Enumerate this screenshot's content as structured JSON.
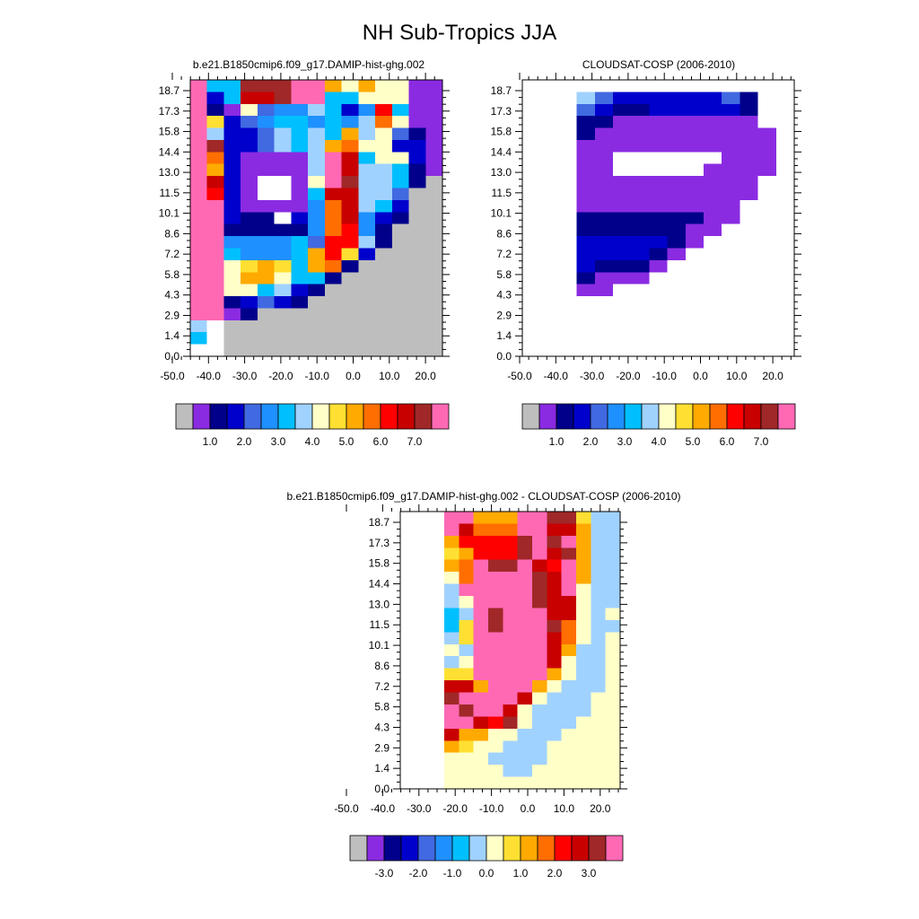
{
  "title": "NH Sub-Tropics JJA",
  "colors": {
    "missing": "#bebebe",
    "levels": [
      "#8a2be2",
      "#00008b",
      "#0000cd",
      "#4169e1",
      "#1e90ff",
      "#00bfff",
      "#a0d2ff",
      "#ffffc8",
      "#ffe032",
      "#ffaa00",
      "#ff6e00",
      "#ff0000",
      "#c80000",
      "#a02828",
      "#ff69b4"
    ]
  },
  "chart_data": [
    {
      "type": "heatmap",
      "title": "b.e21.B1850cmip6.f09_g17.DAMIP-hist-ghg.002",
      "xticks": [
        "-50.0",
        "-40.0",
        "-30.0",
        "-20.0",
        "-10.0",
        "0.0",
        "10.0",
        "20.0"
      ],
      "yticks": [
        "0.0",
        "1.4",
        "2.9",
        "4.3",
        "5.8",
        "7.2",
        "8.6",
        "10.1",
        "11.5",
        "13.0",
        "14.4",
        "15.8",
        "17.3",
        "18.7"
      ],
      "xlim": [
        -54,
        26
      ],
      "ylim": [
        0,
        19.5
      ],
      "colorbar_labels": [
        "1.0",
        "2.0",
        "3.0",
        "4.0",
        "5.0",
        "6.0",
        "7.0"
      ],
      "x_columns": [
        -50,
        -45,
        -40,
        -35,
        -30,
        -25,
        -20,
        -15,
        -10,
        -5,
        0,
        5,
        10,
        15,
        20
      ],
      "grid": [
        "14 5 5 13 13 13 14 14 9 7 9 7 7 0 0",
        "14 2 5 12 12 13 14 14 5 5 7 7 7 0 0",
        "14 1 0 7 3 4 4 6 5 2 4 11 5 0 0",
        "14 8 2 3 4 5 5 4 5 4 6 10 7 0 0",
        "14 6 2 2 3 6 5 6 5 9 6 7 3 1 0",
        "14 13 2 2 3 6 5 6 9 10 7 7 2 2 0",
        "14 10 2 0 0 0 0 6 14 12 5 7 7 2 0",
        "14 9 2 0 0 0 0 6 14 12 6 6 5 1 0",
        "14 12 2 0 -1 -1 0 7 14 13 6 6 5 1 -2",
        "14 11 2 0 -1 -1 0 5 12 12 6 6 3 -2 -2",
        "14 14 2 0 0 0 0 4 10 12 6 5 2 -2 -2",
        "14 14 2 1 1 -1 2 4 10 12 4 2 1 -2 -2",
        "14 14 1 1 1 1 1 4 10 11 4 1 -2 -2 -2",
        "14 14 4 4 4 4 5 3 11 11 6 1 -2 -2 -2",
        "14 14 5 4 4 4 5 9 11 8 2 -2 -2 -2 -2",
        "14 14 7 8 9 8 5 9 10 1 -2 -2 -2 -2 -2",
        "14 14 7 9 9 7 5 5 1 -2 -2 -2 -2 -2 -2",
        "14 14 7 7 5 6 2 1 -2 -2 -2 -2 -2 -2 -2",
        "14 14 1 2 3 2 1 -2 -2 -2 -2 -2 -2 -2 -2",
        "14 14 0 1 -2 -2 -2 -2 -2 -2 -2 -2 -2 -2 -2",
        "6 -1 -2 -2 -2 -2 -2 -2 -2 -2 -2 -2 -2 -2 -2",
        "5 -1 -2 -2 -2 -2 -2 -2 -2 -2 -2 -2 -2 -2 -2",
        "-1 -1 -2 -2 -2 -2 -2 -2 -2 -2 -2 -2 -2 -2 -2"
      ]
    },
    {
      "type": "heatmap",
      "title": "CLOUDSAT-COSP (2006-2010)",
      "xticks": [
        "-50.0",
        "-40.0",
        "-30.0",
        "-20.0",
        "-10.0",
        "0.0",
        "10.0",
        "20.0"
      ],
      "yticks": [
        "0.0",
        "1.4",
        "2.9",
        "4.3",
        "5.8",
        "7.2",
        "8.6",
        "10.1",
        "11.5",
        "13.0",
        "14.4",
        "15.8",
        "17.3",
        "18.7"
      ],
      "xlim": [
        -54,
        26
      ],
      "ylim": [
        0,
        19.5
      ],
      "colorbar_labels": [
        "1.0",
        "2.0",
        "3.0",
        "4.0",
        "5.0",
        "6.0",
        "7.0"
      ],
      "x_columns": [
        -50,
        -45,
        -40,
        -35,
        -30,
        -25,
        -20,
        -15,
        -10,
        -5,
        0,
        5,
        10,
        15,
        20
      ],
      "grid": [
        "-3 -3 -3 -3 -3 -3 -3 -3 -3 -3 -3 -3 -3 -3 -3",
        "-3 -3 -3 6 3 2 2 2 2 2 2 3 1 -1 -1",
        "-3 -3 -3 3 2 1 1 2 2 2 2 2 1 -1 -1",
        "-3 -3 -3 1 1 0 0 0 0 0 0 0 0 -1 -1",
        "-3 -3 -3 1 0 0 0 0 0 0 0 0 0 0 -1",
        "-3 -3 -3 0 0 0 0 0 0 0 0 0 0 0 -1",
        "-3 -3 -3 0 0 -1 -1 -1 -1 -1 -1 0 0 0 -1",
        "-3 -3 -3 0 0 -1 -1 -1 -1 -1 0 0 0 0 -1",
        "-3 -3 -3 0 0 0 0 0 0 0 0 0 0 -1 -1",
        "-3 -3 -3 0 0 0 0 0 0 0 0 0 0 -1 -1",
        "-3 -3 -3 0 0 0 0 0 0 0 0 0 -1 -1 -1",
        "-3 -3 -3 1 1 1 1 1 1 1 0 0 -1 -1 -1",
        "-3 -3 -3 1 1 1 1 1 1 0 0 -1 -1 -1 -1",
        "-3 -3 -3 2 2 2 2 2 1 0 -1 -1 -1 -1 -1",
        "-3 -3 -3 2 2 2 2 1 0 -1 -1 -1 -1 -1 -1",
        "-3 -3 -3 2 1 1 1 0 -1 -1 -1 -1 -1 -1 -1",
        "-3 -3 -3 1 0 0 0 -1 -1 -1 -1 -1 -1 -1 -1",
        "-3 -3 -3 0 0 -1 -1 -1 -1 -1 -1 -1 -1 -1 -1",
        "-3 -3 -3 -1 -1 -1 -1 -1 -1 -1 -1 -1 -1 -1 -1",
        "-3 -3 -3 -1 -1 -1 -1 -1 -1 -1 -1 -1 -1 -1 -1",
        "-3 -3 -3 -1 -1 -1 -1 -1 -1 -1 -1 -1 -1 -1 -1",
        "-3 -3 -3 -1 -1 -1 -1 -1 -1 -1 -1 -1 -1 -1 -1",
        "-3 -3 -3 -1 -1 -1 -1 -1 -1 -1 -1 -1 -1 -1 -1"
      ]
    },
    {
      "type": "heatmap",
      "title": "b.e21.B1850cmip6.f09_g17.DAMIP-hist-ghg.002 - CLOUDSAT-COSP (2006-2010)",
      "xticks": [
        "-50.0",
        "-40.0",
        "-30.0",
        "-20.0",
        "-10.0",
        "0.0",
        "10.0",
        "20.0"
      ],
      "yticks": [
        "0.0",
        "1.4",
        "2.9",
        "4.3",
        "5.8",
        "7.2",
        "8.6",
        "10.1",
        "11.5",
        "13.0",
        "14.4",
        "15.8",
        "17.3",
        "18.7"
      ],
      "xlim": [
        -54,
        26
      ],
      "ylim": [
        0,
        19.5
      ],
      "colorbar_labels": [
        "-3.0",
        "-2.0",
        "-1.0",
        "0.0",
        "1.0",
        "2.0",
        "3.0"
      ],
      "x_columns": [
        -50,
        -45,
        -40,
        -35,
        -30,
        -25,
        -20,
        -15,
        -10,
        -5,
        0,
        5,
        10,
        15,
        20
      ],
      "grid": [
        "-3 -3 -3 14 14 9 9 9 14 14 13 13 8 6 6",
        "-3 -3 -3 14 12 10 10 10 14 14 12 12 9 6 6",
        "-3 -3 -3 9 11 11 11 11 13 14 13 14 9 6 6",
        "-3 -3 -3 8 9 11 11 11 13 14 12 13 9 6 6",
        "-3 -3 -3 9 10 14 13 13 14 12 11 14 9 6 6",
        "-3 -3 -3 7 10 14 14 14 14 13 12 14 9 6 6",
        "-3 -3 -3 6 14 14 14 14 14 13 12 14 7 6 6",
        "-3 -3 -3 6 7 14 14 14 14 13 12 12 7 6 6",
        "-3 -3 -3 5 6 14 13 14 14 14 12 12 7 6 7",
        "-3 -3 -3 5 8 14 13 14 14 14 13 10 7 6 6",
        "-3 -3 -3 6 8 14 14 14 14 14 12 10 7 6 7",
        "-3 -3 -3 7 6 14 14 14 14 14 12 9 6 6 7",
        "-3 -3 -3 6 7 14 14 14 14 14 12 7 6 6 7",
        "-3 -3 -3 8 8 14 14 14 14 14 9 7 6 6 7",
        "-3 -3 -3 12 12 9 14 14 14 9 7 6 6 6 7",
        "-3 -3 -3 13 14 14 14 14 12 7 6 6 6 7 7",
        "-3 -3 -3 14 13 14 14 12 7 6 6 6 6 7 7",
        "-3 -3 -3 14 14 12 11 13 7 6 6 6 7 7 7",
        "-3 -3 -3 12 9 9 7 7 6 6 6 7 7 7 7",
        "-3 -3 -3 9 8 7 7 6 6 6 7 7 7 7 7",
        "-3 -3 -3 7 7 7 6 6 6 6 7 7 7 7 7",
        "-3 -3 -3 7 7 7 7 6 6 7 7 7 7 7 7",
        "-3 -3 -3 7 7 7 7 7 7 7 7 7 7 7 7"
      ]
    }
  ]
}
